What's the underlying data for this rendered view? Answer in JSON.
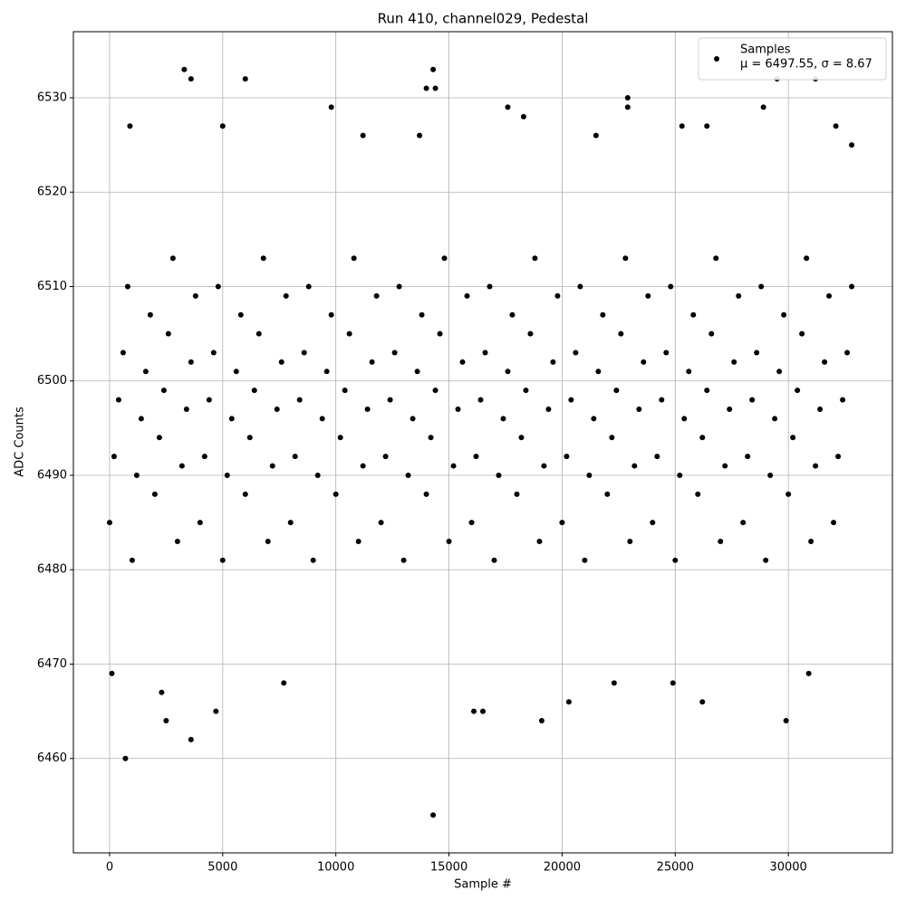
{
  "chart_data": {
    "type": "scatter",
    "title": "Run 410, channel029, Pedestal",
    "x_label": "Sample #",
    "y_label": "ADC Counts",
    "xlim": [
      -1600,
      34600
    ],
    "ylim": [
      6450,
      6537
    ],
    "xticks": [
      0,
      5000,
      10000,
      15000,
      20000,
      25000,
      30000
    ],
    "yticks": [
      6460,
      6470,
      6480,
      6490,
      6500,
      6510,
      6520,
      6530
    ],
    "grid": true,
    "legend": "upper right",
    "legend_note": "μ = 6497.55, σ = 8.67",
    "series": [
      {
        "name": "Samples",
        "color": "#000000",
        "x": [
          0,
          200,
          400,
          600,
          800,
          1000,
          1200,
          1400,
          1600,
          1800,
          2000,
          2200,
          2400,
          2600,
          2800,
          3000,
          3200,
          3400,
          3600,
          3800,
          4000,
          4200,
          4400,
          4600,
          4800,
          5000,
          5200,
          5400,
          5600,
          5800,
          6000,
          6200,
          6400,
          6600,
          6800,
          7000,
          7200,
          7400,
          7600,
          7800,
          8000,
          8200,
          8400,
          8600,
          8800,
          9000,
          9200,
          9400,
          9600,
          9800,
          10000,
          10200,
          10400,
          10600,
          10800,
          11000,
          11200,
          11400,
          11600,
          11800,
          12000,
          12200,
          12400,
          12600,
          12800,
          13000,
          13200,
          13400,
          13600,
          13800,
          14000,
          14200,
          14400,
          14600,
          14800,
          15000,
          15200,
          15400,
          15600,
          15800,
          16000,
          16200,
          16400,
          16600,
          16800,
          17000,
          17200,
          17400,
          17600,
          17800,
          18000,
          18200,
          18400,
          18600,
          18800,
          19000,
          19200,
          19400,
          19600,
          19800,
          20000,
          20200,
          20400,
          20600,
          20800,
          21000,
          21200,
          21400,
          21600,
          21800,
          22000,
          22200,
          22400,
          22600,
          22800,
          23000,
          23200,
          23400,
          23600,
          23800,
          24000,
          24200,
          24400,
          24600,
          24800,
          25000,
          25200,
          25400,
          25600,
          25800,
          26000,
          26200,
          26400,
          26600,
          26800,
          27000,
          27200,
          27400,
          27600,
          27800,
          28000,
          28200,
          28400,
          28600,
          28800,
          29000,
          29200,
          29400,
          29600,
          29800,
          30000,
          30200,
          30400,
          30600,
          30800,
          31000,
          31200,
          31400,
          31600,
          31800,
          32000,
          32200,
          32400,
          32600,
          32800,
          100,
          700,
          900,
          3300,
          3600,
          2500,
          3600,
          4700,
          5000,
          6000,
          7700,
          9800,
          11200,
          13700,
          14000,
          14300,
          14400,
          14300,
          16100,
          16500,
          17600,
          18300,
          19100,
          21500,
          22900,
          22900,
          22300,
          24900,
          25300,
          26400,
          26200,
          28900,
          29500,
          29900,
          31200,
          32100,
          32800,
          2300,
          20300,
          30900
        ],
        "y": [
          6485,
          6492,
          6498,
          6503,
          6510,
          6481,
          6490,
          6496,
          6501,
          6507,
          6488,
          6494,
          6499,
          6505,
          6513,
          6483,
          6491,
          6497,
          6502,
          6509,
          6485,
          6492,
          6498,
          6503,
          6510,
          6481,
          6490,
          6496,
          6501,
          6507,
          6488,
          6494,
          6499,
          6505,
          6513,
          6483,
          6491,
          6497,
          6502,
          6509,
          6485,
          6492,
          6498,
          6503,
          6510,
          6481,
          6490,
          6496,
          6501,
          6507,
          6488,
          6494,
          6499,
          6505,
          6513,
          6483,
          6491,
          6497,
          6502,
          6509,
          6485,
          6492,
          6498,
          6503,
          6510,
          6481,
          6490,
          6496,
          6501,
          6507,
          6488,
          6494,
          6499,
          6505,
          6513,
          6483,
          6491,
          6497,
          6502,
          6509,
          6485,
          6492,
          6498,
          6503,
          6510,
          6481,
          6490,
          6496,
          6501,
          6507,
          6488,
          6494,
          6499,
          6505,
          6513,
          6483,
          6491,
          6497,
          6502,
          6509,
          6485,
          6492,
          6498,
          6503,
          6510,
          6481,
          6490,
          6496,
          6501,
          6507,
          6488,
          6494,
          6499,
          6505,
          6513,
          6483,
          6491,
          6497,
          6502,
          6509,
          6485,
          6492,
          6498,
          6503,
          6510,
          6481,
          6490,
          6496,
          6501,
          6507,
          6488,
          6494,
          6499,
          6505,
          6513,
          6483,
          6491,
          6497,
          6502,
          6509,
          6485,
          6492,
          6498,
          6503,
          6510,
          6481,
          6490,
          6496,
          6501,
          6507,
          6488,
          6494,
          6499,
          6505,
          6513,
          6483,
          6491,
          6497,
          6502,
          6509,
          6485,
          6492,
          6498,
          6503,
          6510,
          6469,
          6460,
          6527,
          6533,
          6532,
          6464,
          6462,
          6465,
          6527,
          6532,
          6468,
          6529,
          6526,
          6526,
          6531,
          6533,
          6531,
          6454,
          6465,
          6465,
          6529,
          6528,
          6464,
          6526,
          6530,
          6529,
          6468,
          6468,
          6527,
          6527,
          6466,
          6529,
          6532,
          6464,
          6532,
          6527,
          6525,
          6467,
          6466,
          6469
        ]
      }
    ]
  }
}
